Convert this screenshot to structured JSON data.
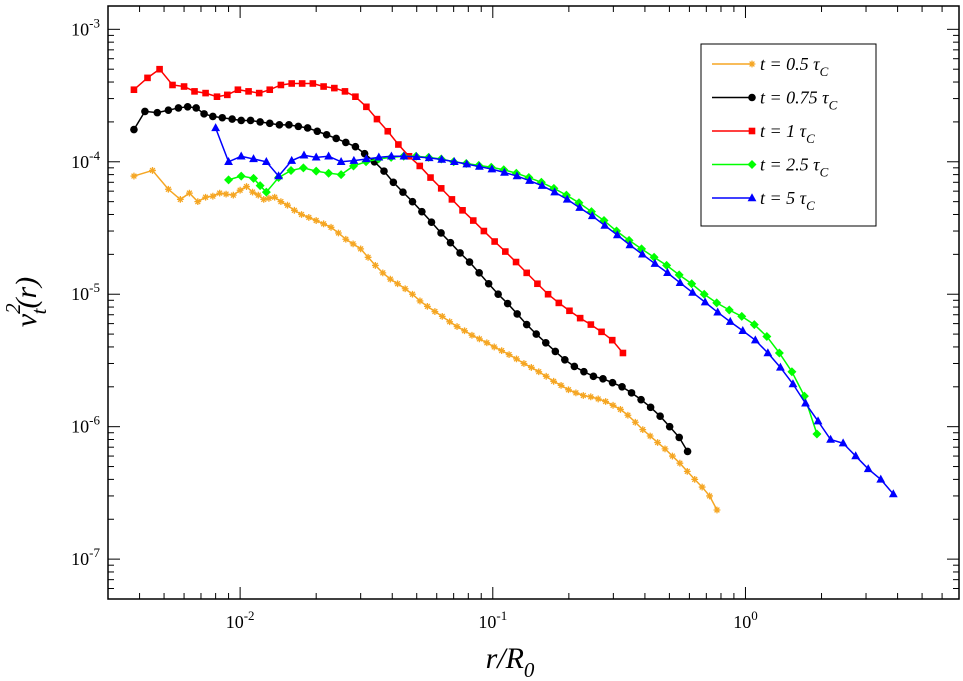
{
  "chart_data": {
    "type": "line",
    "xscale": "log",
    "yscale": "log",
    "xlim": [
      0.003,
      7.0
    ],
    "ylim": [
      5e-08,
      0.0015
    ],
    "xlabel": {
      "main": "r/R",
      "sub": "0"
    },
    "ylabel": {
      "main": "v",
      "sup": "2",
      "sub": "t",
      "tail": "(r)"
    },
    "xticks": [
      {
        "value": 0.01,
        "base": "10",
        "exp": "-2"
      },
      {
        "value": 0.1,
        "base": "10",
        "exp": "-1"
      },
      {
        "value": 1.0,
        "base": "10",
        "exp": "0"
      }
    ],
    "yticks": [
      {
        "value": 1e-07,
        "base": "10",
        "exp": "-7"
      },
      {
        "value": 1e-06,
        "base": "10",
        "exp": "-6"
      },
      {
        "value": 1e-05,
        "base": "10",
        "exp": "-5"
      },
      {
        "value": 0.0001,
        "base": "10",
        "exp": "-4"
      },
      {
        "value": 0.001,
        "base": "10",
        "exp": "-3"
      }
    ],
    "grid": false,
    "legend_position": "top-right",
    "series": [
      {
        "name": "t =  0.5 τC",
        "label": {
          "pre": "t =  0.5 τ",
          "sub": "C"
        },
        "color": "#f5a623",
        "marker": "star",
        "x": [
          0.0038,
          0.0045,
          0.0052,
          0.0058,
          0.0063,
          0.0068,
          0.0073,
          0.0078,
          0.0083,
          0.0088,
          0.0094,
          0.01,
          0.0106,
          0.0112,
          0.0118,
          0.0124,
          0.013,
          0.0137,
          0.0145,
          0.0154,
          0.0164,
          0.0175,
          0.0187,
          0.02,
          0.0214,
          0.0229,
          0.0245,
          0.0262,
          0.028,
          0.03,
          0.0321,
          0.0343,
          0.0367,
          0.0393,
          0.042,
          0.045,
          0.0481,
          0.0515,
          0.0551,
          0.059,
          0.0631,
          0.0675,
          0.0722,
          0.0773,
          0.0827,
          0.0885,
          0.0947,
          0.1013,
          0.1084,
          0.116,
          0.1241,
          0.1328,
          0.1421,
          0.152,
          0.1627,
          0.1741,
          0.1863,
          0.1993,
          0.2133,
          0.2282,
          0.2442,
          0.2613,
          0.2796,
          0.2992,
          0.3201,
          0.3425,
          0.3665,
          0.3922,
          0.4196,
          0.449,
          0.4804,
          0.514,
          0.55,
          0.5885,
          0.6297,
          0.6738,
          0.721,
          0.7714
        ],
        "y": [
          7.8e-05,
          8.6e-05,
          6.2e-05,
          5.2e-05,
          5.8e-05,
          5e-05,
          5.4e-05,
          5.5e-05,
          5.8e-05,
          5.7e-05,
          5.6e-05,
          6.1e-05,
          6.5e-05,
          5.9e-05,
          5.6e-05,
          5.2e-05,
          5.3e-05,
          5.4e-05,
          5e-05,
          4.7e-05,
          4.3e-05,
          4e-05,
          3.8e-05,
          3.6e-05,
          3.4e-05,
          3.2e-05,
          2.9e-05,
          2.6e-05,
          2.4e-05,
          2.2e-05,
          1.9e-05,
          1.65e-05,
          1.45e-05,
          1.3e-05,
          1.2e-05,
          1.1e-05,
          1e-05,
          8.9e-06,
          8.1e-06,
          7.4e-06,
          6.8e-06,
          6.2e-06,
          5.7e-06,
          5.3e-06,
          4.9e-06,
          4.6e-06,
          4.3e-06,
          4e-06,
          3.75e-06,
          3.5e-06,
          3.25e-06,
          3e-06,
          2.8e-06,
          2.6e-06,
          2.4e-06,
          2.2e-06,
          2.05e-06,
          1.9e-06,
          1.8e-06,
          1.72e-06,
          1.68e-06,
          1.62e-06,
          1.55e-06,
          1.45e-06,
          1.35e-06,
          1.22e-06,
          1.08e-06,
          9.5e-07,
          8.5e-07,
          7.6e-07,
          6.8e-07,
          6e-07,
          5.3e-07,
          4.6e-07,
          4e-07,
          3.5e-07,
          3e-07,
          2.35e-07
        ]
      },
      {
        "name": "t = 0.75 τC",
        "label": {
          "pre": "t = 0.75 τ",
          "sub": "C"
        },
        "color": "#000000",
        "marker": "circle",
        "x": [
          0.0038,
          0.0042,
          0.0047,
          0.0052,
          0.0057,
          0.0062,
          0.0067,
          0.0072,
          0.0078,
          0.0085,
          0.0093,
          0.0101,
          0.011,
          0.012,
          0.0131,
          0.0143,
          0.0156,
          0.017,
          0.0185,
          0.0202,
          0.022,
          0.024,
          0.0262,
          0.0286,
          0.0311,
          0.034,
          0.0371,
          0.0404,
          0.0441,
          0.0481,
          0.0524,
          0.0572,
          0.0624,
          0.068,
          0.0742,
          0.0809,
          0.0883,
          0.0963,
          0.105,
          0.1145,
          0.1249,
          0.1362,
          0.1486,
          0.1621,
          0.1768,
          0.1928,
          0.2103,
          0.2294,
          0.2502,
          0.2729,
          0.2977,
          0.3247,
          0.3541,
          0.3862,
          0.4213,
          0.4595,
          0.5012,
          0.5467,
          0.59
        ],
        "y": [
          0.000175,
          0.00024,
          0.000235,
          0.000245,
          0.000255,
          0.00026,
          0.000255,
          0.00023,
          0.00022,
          0.000215,
          0.00021,
          0.000205,
          0.000205,
          0.0002,
          0.000195,
          0.00019,
          0.00019,
          0.000185,
          0.00018,
          0.00017,
          0.00016,
          0.00015,
          0.00014,
          0.00013,
          0.000115,
          0.0001,
          8.5e-05,
          7e-05,
          5.9e-05,
          5e-05,
          4.2e-05,
          3.5e-05,
          2.9e-05,
          2.45e-05,
          2.05e-05,
          1.75e-05,
          1.45e-05,
          1.2e-05,
          1e-05,
          8.5e-06,
          7.1e-06,
          5.9e-06,
          5e-06,
          4.3e-06,
          3.7e-06,
          3.2e-06,
          2.85e-06,
          2.6e-06,
          2.4e-06,
          2.3e-06,
          2.15e-06,
          2e-06,
          1.8e-06,
          1.6e-06,
          1.4e-06,
          1.2e-06,
          1e-06,
          8.3e-07,
          6.5e-07
        ]
      },
      {
        "name": "t = 1 τC",
        "label": {
          "pre": "t = 1 τ",
          "sub": "C"
        },
        "color": "#ff0000",
        "marker": "square",
        "x": [
          0.0038,
          0.0043,
          0.0048,
          0.0054,
          0.006,
          0.0066,
          0.0073,
          0.0081,
          0.0089,
          0.0098,
          0.0108,
          0.0119,
          0.0131,
          0.0145,
          0.016,
          0.0176,
          0.0194,
          0.0214,
          0.0236,
          0.026,
          0.0286,
          0.0316,
          0.0348,
          0.0384,
          0.0423,
          0.0466,
          0.0514,
          0.0567,
          0.0625,
          0.0689,
          0.0759,
          0.0837,
          0.0922,
          0.1017,
          0.1121,
          0.1236,
          0.1362,
          0.1502,
          0.1655,
          0.1825,
          0.2011,
          0.2217,
          0.2444,
          0.2694,
          0.297,
          0.3274
        ],
        "y": [
          0.00035,
          0.00043,
          0.0005,
          0.00038,
          0.00037,
          0.00034,
          0.00033,
          0.00031,
          0.00032,
          0.00035,
          0.00034,
          0.00033,
          0.00035,
          0.00038,
          0.00039,
          0.00039,
          0.00039,
          0.00037,
          0.00036,
          0.00034,
          0.00031,
          0.00026,
          0.00021,
          0.00017,
          0.000135,
          0.00011,
          9.3e-05,
          7.6e-05,
          6.3e-05,
          5.2e-05,
          4.3e-05,
          3.6e-05,
          3e-05,
          2.5e-05,
          2.1e-05,
          1.75e-05,
          1.45e-05,
          1.2e-05,
          1e-05,
          8.6e-06,
          7.5e-06,
          6.6e-06,
          5.9e-06,
          5.2e-06,
          4.5e-06,
          3.6e-06
        ]
      },
      {
        "name": "t = 2.5 τC",
        "label": {
          "pre": "t = 2.5 τ",
          "sub": "C"
        },
        "color": "#00ff00",
        "marker": "diamond",
        "x": [
          0.009,
          0.0101,
          0.0113,
          0.012,
          0.0127,
          0.0142,
          0.0159,
          0.0178,
          0.02,
          0.0224,
          0.0251,
          0.0281,
          0.0315,
          0.0353,
          0.0396,
          0.0444,
          0.0497,
          0.0557,
          0.0625,
          0.07,
          0.0785,
          0.088,
          0.0986,
          0.1105,
          0.1239,
          0.1389,
          0.1557,
          0.1745,
          0.1956,
          0.2193,
          0.2458,
          0.2755,
          0.3088,
          0.3462,
          0.388,
          0.4349,
          0.4875,
          0.5465,
          0.6126,
          0.6866,
          0.7696,
          0.8627,
          0.967,
          1.0839,
          1.215,
          1.362,
          1.5267,
          1.7113,
          1.9182
        ],
        "y": [
          7.3e-05,
          7.8e-05,
          7.5e-05,
          6.6e-05,
          5.9e-05,
          7.6e-05,
          8.6e-05,
          9e-05,
          8.5e-05,
          8.2e-05,
          8e-05,
          9.3e-05,
          0.0001,
          0.000105,
          0.000108,
          0.00011,
          0.00011,
          0.000108,
          0.000105,
          0.0001,
          9.7e-05,
          9.4e-05,
          9.1e-05,
          8.7e-05,
          8.2e-05,
          7.6e-05,
          7e-05,
          6.3e-05,
          5.6e-05,
          4.9e-05,
          4.2e-05,
          3.6e-05,
          3e-05,
          2.55e-05,
          2.2e-05,
          1.9e-05,
          1.65e-05,
          1.4e-05,
          1.2e-05,
          1e-05,
          8.6e-06,
          7.6e-06,
          6.8e-06,
          5.9e-06,
          4.8e-06,
          3.6e-06,
          2.6e-06,
          1.7e-06,
          8.8e-07
        ]
      },
      {
        "name": "t = 5 τC",
        "label": {
          "pre": "t = 5 τ",
          "sub": "C"
        },
        "color": "#0000ff",
        "marker": "triangle",
        "x": [
          0.008,
          0.009,
          0.0101,
          0.0113,
          0.0127,
          0.0142,
          0.016,
          0.0179,
          0.02,
          0.0224,
          0.0251,
          0.0282,
          0.0316,
          0.0354,
          0.0397,
          0.0445,
          0.0499,
          0.056,
          0.0628,
          0.0704,
          0.0789,
          0.0885,
          0.0992,
          0.1112,
          0.1247,
          0.1398,
          0.1567,
          0.1757,
          0.197,
          0.2208,
          0.2476,
          0.2775,
          0.3111,
          0.3488,
          0.391,
          0.4384,
          0.4915,
          0.551,
          0.6177,
          0.6925,
          0.7764,
          0.8704,
          0.9758,
          1.094,
          1.2265,
          1.375,
          1.5415,
          1.7282,
          1.9375,
          2.1721,
          2.4351,
          2.73,
          3.0606,
          3.4312,
          3.8467
        ],
        "y": [
          0.00018,
          0.0001,
          0.00011,
          0.000105,
          0.0001,
          7.8e-05,
          0.000102,
          0.000112,
          0.000108,
          0.00011,
          0.0001,
          0.000102,
          0.000105,
          0.000108,
          0.00011,
          0.00011,
          0.000109,
          0.000107,
          0.000104,
          0.0001,
          9.6e-05,
          9.2e-05,
          8.8e-05,
          8.3e-05,
          7.8e-05,
          7.2e-05,
          6.6e-05,
          5.9e-05,
          5.2e-05,
          4.5e-05,
          3.9e-05,
          3.3e-05,
          2.8e-05,
          2.35e-05,
          2e-05,
          1.7e-05,
          1.45e-05,
          1.22e-05,
          1.03e-05,
          8.7e-06,
          7.3e-06,
          6.2e-06,
          5.3e-06,
          4.5e-06,
          3.6e-06,
          2.8e-06,
          2.1e-06,
          1.5e-06,
          1.1e-06,
          8e-07,
          7.5e-07,
          6e-07,
          4.8e-07,
          4e-07,
          3.1e-07
        ]
      }
    ]
  }
}
